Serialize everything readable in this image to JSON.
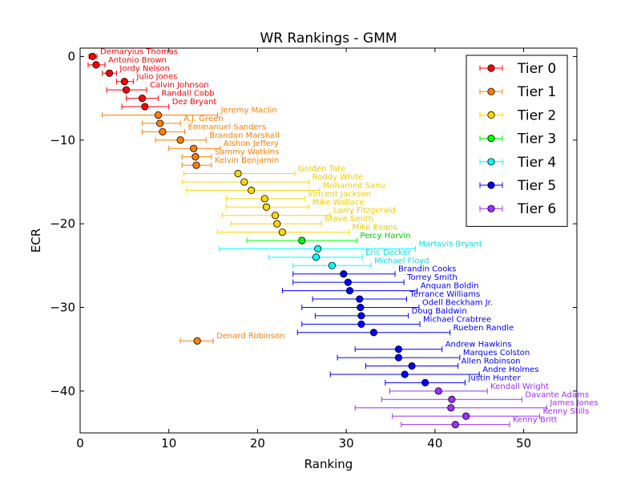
{
  "chart_data": {
    "type": "scatter",
    "title": "WR Rankings - GMM",
    "xlabel": "Ranking",
    "ylabel": "ECR",
    "xlim": [
      0,
      56
    ],
    "ylim": [
      -45,
      1
    ],
    "xticks": [
      0,
      10,
      20,
      30,
      40,
      50
    ],
    "yticks": [
      0,
      -10,
      -20,
      -30,
      -40
    ],
    "grid": false,
    "legend_position": "top-right",
    "tiers": [
      {
        "name": "Tier 0",
        "color": "#ff0000"
      },
      {
        "name": "Tier 1",
        "color": "#ff8000"
      },
      {
        "name": "Tier 2",
        "color": "#ffd700"
      },
      {
        "name": "Tier 3",
        "color": "#00ff00"
      },
      {
        "name": "Tier 4",
        "color": "#00ffff"
      },
      {
        "name": "Tier 5",
        "color": "#0000ff"
      },
      {
        "name": "Tier 6",
        "color": "#9b30ff"
      }
    ],
    "players": [
      {
        "name": "Demaryius Thomas",
        "tier": 0,
        "x": 1.4,
        "xmin": 1.0,
        "xmax": 1.9,
        "y": 0
      },
      {
        "name": "Antonio Brown",
        "tier": 0,
        "x": 1.8,
        "xmin": 0.9,
        "xmax": 2.8,
        "y": -1
      },
      {
        "name": "Jordy Nelson",
        "tier": 0,
        "x": 3.3,
        "xmin": 2.5,
        "xmax": 4.1,
        "y": -2
      },
      {
        "name": "Julio Jones",
        "tier": 0,
        "x": 5.0,
        "xmin": 4.1,
        "xmax": 6.0,
        "y": -3
      },
      {
        "name": "Calvin Johnson",
        "tier": 0,
        "x": 5.2,
        "xmin": 3.0,
        "xmax": 7.5,
        "y": -4
      },
      {
        "name": "Randall Cobb",
        "tier": 0,
        "x": 7.0,
        "xmin": 5.2,
        "xmax": 8.8,
        "y": -5
      },
      {
        "name": "Dez Bryant",
        "tier": 0,
        "x": 7.3,
        "xmin": 4.7,
        "xmax": 10.0,
        "y": -6
      },
      {
        "name": "Jeremy Maclin",
        "tier": 1,
        "x": 8.8,
        "xmin": 2.5,
        "xmax": 15.5,
        "y": -7
      },
      {
        "name": "A.J. Green",
        "tier": 1,
        "x": 9.0,
        "xmin": 7.0,
        "xmax": 11.3,
        "y": -8
      },
      {
        "name": "Emmanuel Sanders",
        "tier": 1,
        "x": 9.3,
        "xmin": 7.0,
        "xmax": 11.8,
        "y": -9
      },
      {
        "name": "Brandon Marshall",
        "tier": 1,
        "x": 11.3,
        "xmin": 8.5,
        "xmax": 14.2,
        "y": -10
      },
      {
        "name": "Alshon Jeffery",
        "tier": 1,
        "x": 12.8,
        "xmin": 10.0,
        "xmax": 15.8,
        "y": -11
      },
      {
        "name": "Sammy Watkins",
        "tier": 1,
        "x": 13.0,
        "xmin": 11.5,
        "xmax": 14.8,
        "y": -12
      },
      {
        "name": "Kelvin Benjamin",
        "tier": 1,
        "x": 13.1,
        "xmin": 11.5,
        "xmax": 14.8,
        "y": -13
      },
      {
        "name": "Golden Tate",
        "tier": 2,
        "x": 17.8,
        "xmin": 11.7,
        "xmax": 24.2,
        "y": -14
      },
      {
        "name": "Roddy White",
        "tier": 2,
        "x": 18.5,
        "xmin": 11.5,
        "xmax": 25.8,
        "y": -15
      },
      {
        "name": "Mohamed Sanu",
        "tier": 2,
        "x": 19.3,
        "xmin": 12.0,
        "xmax": 27.0,
        "y": -16
      },
      {
        "name": "Vincent Jackson",
        "tier": 2,
        "x": 20.8,
        "xmin": 16.5,
        "xmax": 25.3,
        "y": -17
      },
      {
        "name": "Mike Wallace",
        "tier": 2,
        "x": 21.0,
        "xmin": 16.5,
        "xmax": 25.8,
        "y": -18
      },
      {
        "name": "Larry Fitzgerald",
        "tier": 2,
        "x": 22.0,
        "xmin": 16.0,
        "xmax": 28.2,
        "y": -19
      },
      {
        "name": "Steve Smith",
        "tier": 2,
        "x": 22.2,
        "xmin": 17.0,
        "xmax": 27.2,
        "y": -20
      },
      {
        "name": "Mike Evans",
        "tier": 2,
        "x": 22.8,
        "xmin": 15.5,
        "xmax": 30.3,
        "y": -21
      },
      {
        "name": "Percy Harvin",
        "tier": 3,
        "x": 25.0,
        "xmin": 18.8,
        "xmax": 31.2,
        "y": -22
      },
      {
        "name": "Martavis Bryant",
        "tier": 4,
        "x": 26.8,
        "xmin": 15.7,
        "xmax": 37.8,
        "y": -23
      },
      {
        "name": "Eric Decker",
        "tier": 4,
        "x": 26.6,
        "xmin": 21.3,
        "xmax": 31.8,
        "y": -24
      },
      {
        "name": "Michael Floyd",
        "tier": 4,
        "x": 28.4,
        "xmin": 24.0,
        "xmax": 32.8,
        "y": -25
      },
      {
        "name": "Brandin Cooks",
        "tier": 5,
        "x": 29.7,
        "xmin": 24.0,
        "xmax": 35.5,
        "y": -26
      },
      {
        "name": "Torrey Smith",
        "tier": 5,
        "x": 30.2,
        "xmin": 24.0,
        "xmax": 36.5,
        "y": -27
      },
      {
        "name": "Anquan Boldin",
        "tier": 5,
        "x": 30.4,
        "xmin": 22.8,
        "xmax": 38.0,
        "y": -28
      },
      {
        "name": "Terrance Williams",
        "tier": 5,
        "x": 31.5,
        "xmin": 26.2,
        "xmax": 36.8,
        "y": -29
      },
      {
        "name": "Odell Beckham Jr.",
        "tier": 5,
        "x": 31.6,
        "xmin": 25.0,
        "xmax": 38.2,
        "y": -30
      },
      {
        "name": "Doug Baldwin",
        "tier": 5,
        "x": 31.7,
        "xmin": 26.5,
        "xmax": 37.0,
        "y": -31
      },
      {
        "name": "Michael Crabtree",
        "tier": 5,
        "x": 31.7,
        "xmin": 25.0,
        "xmax": 38.3,
        "y": -32
      },
      {
        "name": "Rueben Randle",
        "tier": 5,
        "x": 33.1,
        "xmin": 24.5,
        "xmax": 41.7,
        "y": -33
      },
      {
        "name": "Denard Robinson",
        "tier": 1,
        "x": 13.2,
        "xmin": 11.3,
        "xmax": 15.0,
        "y": -34
      },
      {
        "name": "Andrew Hawkins",
        "tier": 5,
        "x": 35.9,
        "xmin": 31.0,
        "xmax": 40.8,
        "y": -35
      },
      {
        "name": "Marques Colston",
        "tier": 5,
        "x": 35.9,
        "xmin": 29.0,
        "xmax": 42.8,
        "y": -36
      },
      {
        "name": "Allen Robinson",
        "tier": 5,
        "x": 37.4,
        "xmin": 32.2,
        "xmax": 42.6,
        "y": -37
      },
      {
        "name": "Andre Holmes",
        "tier": 5,
        "x": 36.6,
        "xmin": 28.2,
        "xmax": 45.0,
        "y": -38
      },
      {
        "name": "Justin Hunter",
        "tier": 5,
        "x": 38.9,
        "xmin": 34.4,
        "xmax": 43.4,
        "y": -39
      },
      {
        "name": "Kendall Wright",
        "tier": 6,
        "x": 40.4,
        "xmin": 34.9,
        "xmax": 45.9,
        "y": -40
      },
      {
        "name": "Davante Adams",
        "tier": 6,
        "x": 41.9,
        "xmin": 34.0,
        "xmax": 49.8,
        "y": -41
      },
      {
        "name": "James Jones",
        "tier": 6,
        "x": 41.8,
        "xmin": 31.0,
        "xmax": 52.6,
        "y": -42
      },
      {
        "name": "Kenny Stills",
        "tier": 6,
        "x": 43.5,
        "xmin": 35.2,
        "xmax": 51.8,
        "y": -43
      },
      {
        "name": "Kenny Britt",
        "tier": 6,
        "x": 42.3,
        "xmin": 36.2,
        "xmax": 48.4,
        "y": -44
      }
    ]
  }
}
